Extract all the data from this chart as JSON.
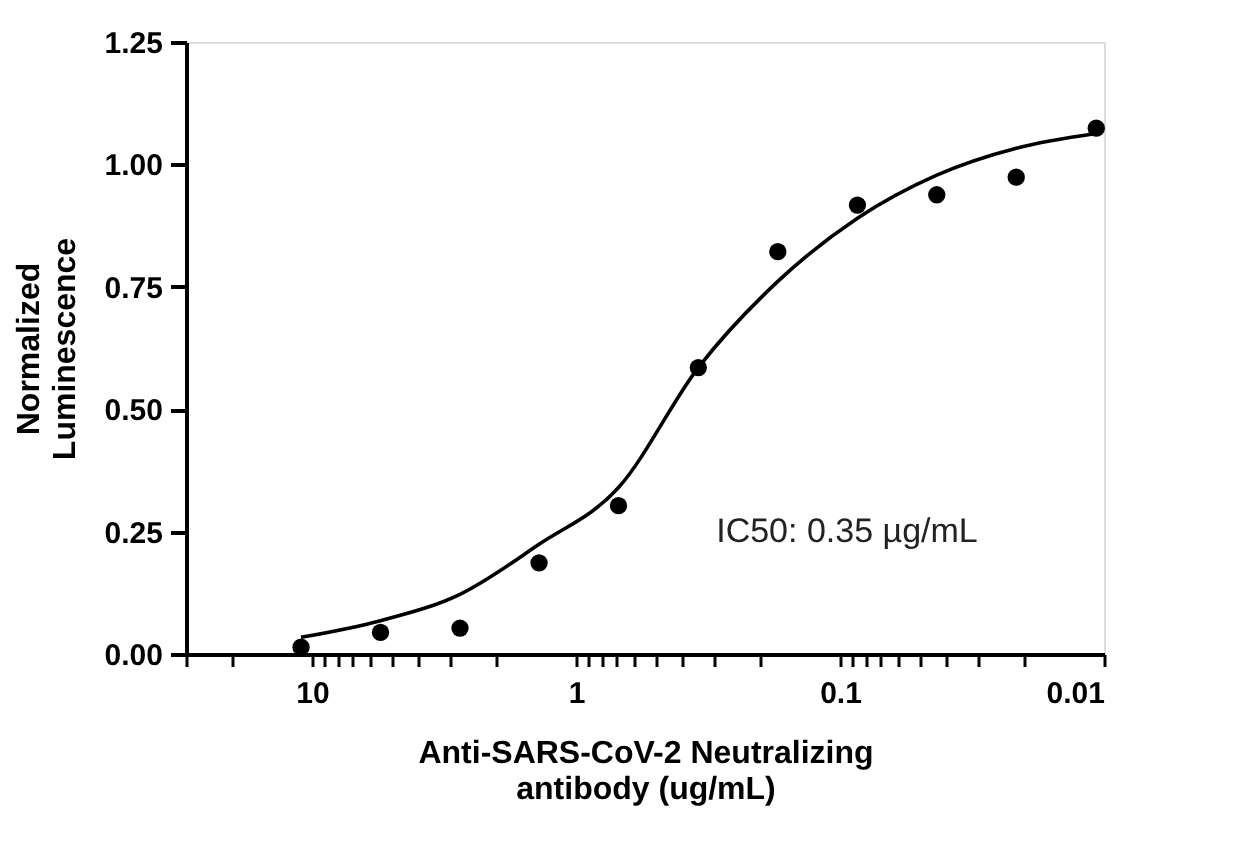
{
  "chart_data": {
    "type": "scatter",
    "xlabel": "Anti-SARS-CoV-2 Neutralizing\nantibody (ug/mL)",
    "ylabel": "Normalized\nLuminescence",
    "log": "x",
    "grid": false,
    "legend": false,
    "marker": "circle",
    "xlim": [
      30,
      0.01
    ],
    "ylim": [
      0,
      1.25
    ],
    "xticks": [
      {
        "value": 30,
        "label": null
      },
      {
        "value": 20,
        "label": null
      },
      10,
      {
        "value": 9,
        "label": null
      },
      {
        "value": 8,
        "label": null
      },
      {
        "value": 7,
        "label": null
      },
      {
        "value": 6,
        "label": null
      },
      {
        "value": 5,
        "label": null
      },
      {
        "value": 4,
        "label": null
      },
      {
        "value": 3,
        "label": null
      },
      {
        "value": 2,
        "label": null
      },
      1,
      {
        "value": 0.9,
        "label": null
      },
      {
        "value": 0.8,
        "label": null
      },
      {
        "value": 0.7,
        "label": null
      },
      {
        "value": 0.6,
        "label": null
      },
      {
        "value": 0.5,
        "label": null
      },
      {
        "value": 0.4,
        "label": null
      },
      {
        "value": 0.3,
        "label": null
      },
      {
        "value": 0.2,
        "label": null
      },
      0.1,
      {
        "value": 0.09,
        "label": null
      },
      {
        "value": 0.08,
        "label": null
      },
      {
        "value": 0.07,
        "label": null
      },
      {
        "value": 0.06,
        "label": null
      },
      {
        "value": 0.05,
        "label": null
      },
      {
        "value": 0.04,
        "label": null
      },
      {
        "value": 0.03,
        "label": null
      },
      {
        "value": 0.02,
        "label": null
      },
      0.01
    ],
    "yticks": [
      {
        "value": 0,
        "label": "0.00"
      },
      0.25,
      {
        "value": 0.5,
        "label": "0.50"
      },
      0.75,
      {
        "value": 1,
        "label": "1.00"
      },
      1.25
    ],
    "series": [
      {
        "color": "#000000",
        "x": [
          11,
          5.5,
          2.75,
          1.38,
          0.69,
          0.344,
          0.172,
          0.0859,
          0.043,
          0.0215,
          0.0107
        ],
        "values": [
          0.014,
          0.044,
          0.053,
          0.186,
          0.303,
          0.585,
          0.822,
          0.917,
          0.938,
          0.974,
          1.074
        ]
      },
      {
        "type": "line",
        "color": "#000000",
        "marker": "none",
        "x": [
          11,
          5.5,
          2.75,
          1.38,
          0.69,
          0.344,
          0.172,
          0.0859,
          0.043,
          0.0215,
          0.0107
        ],
        "values": [
          0.034,
          0.068,
          0.122,
          0.224,
          0.34,
          0.585,
          0.761,
          0.89,
          0.978,
          1.033,
          1.063
        ]
      }
    ],
    "annotations": [
      "IC50: 0.35 µg/mL"
    ]
  }
}
